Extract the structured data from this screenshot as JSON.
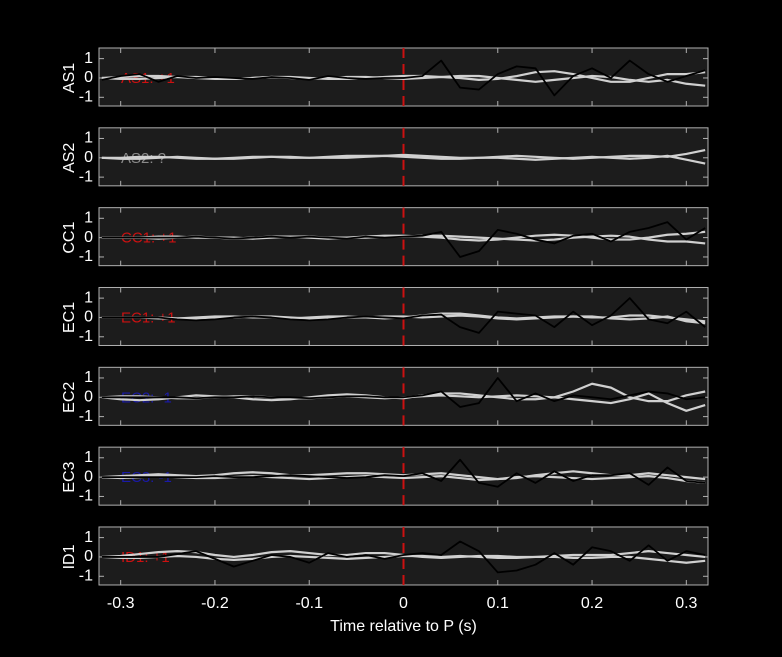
{
  "chart_data": [
    {
      "type": "line",
      "ylabel": "AS1",
      "annotation": "AS1: +1",
      "annotation_color": "#cc1111",
      "vline": 0,
      "vline_color": "#cc1111",
      "x": [
        -0.32,
        -0.3,
        -0.28,
        -0.26,
        -0.24,
        -0.22,
        -0.2,
        -0.18,
        -0.16,
        -0.14,
        -0.12,
        -0.1,
        -0.08,
        -0.06,
        -0.04,
        -0.02,
        0,
        0.02,
        0.04,
        0.06,
        0.08,
        0.1,
        0.12,
        0.14,
        0.16,
        0.18,
        0.2,
        0.22,
        0.24,
        0.26,
        0.28,
        0.3,
        0.32
      ],
      "xlim": [
        -0.323,
        0.323
      ],
      "ylim": [
        -1.45,
        1.55
      ],
      "xticks": [
        -0.3,
        -0.2,
        -0.1,
        0,
        0.1,
        0.2,
        0.3
      ],
      "yticks": [
        -1,
        0,
        1
      ],
      "series": [
        {
          "color": "#d0d0d0",
          "values": [
            0,
            0.05,
            0.1,
            0.1,
            0.05,
            0,
            -0.05,
            -0.05,
            0,
            0.05,
            0.05,
            0,
            -0.05,
            -0.05,
            0,
            0.05,
            0.1,
            0.1,
            0.05,
            0,
            -0.1,
            -0.05,
            0.1,
            0.3,
            0.35,
            0.2,
            0,
            -0.2,
            -0.2,
            0,
            0.2,
            0.2,
            0.3
          ]
        },
        {
          "color": "#d0d0d0",
          "values": [
            0,
            -0.05,
            -0.05,
            0,
            0.05,
            0.05,
            0,
            -0.05,
            0,
            0.05,
            0,
            -0.05,
            0,
            0.05,
            0.05,
            0,
            -0.05,
            0,
            0.05,
            0.1,
            0.1,
            0,
            -0.1,
            -0.2,
            -0.1,
            0,
            0.1,
            0.05,
            -0.1,
            -0.2,
            -0.1,
            -0.3,
            -0.4
          ]
        },
        {
          "color": "#000000",
          "values": [
            -0.1,
            0.1,
            0.2,
            -0.2,
            0.1,
            0,
            0.05,
            0,
            -0.05,
            0.05,
            0,
            -0.1,
            0.1,
            0,
            -0.05,
            0,
            0,
            0.1,
            0.9,
            -0.5,
            -0.6,
            0.2,
            0.6,
            0.5,
            -0.9,
            0.1,
            0.5,
            0,
            0.9,
            0.2,
            -0.2,
            0.1,
            0.4
          ]
        }
      ]
    },
    {
      "type": "line",
      "ylabel": "AS2",
      "annotation": "AS2: ?",
      "annotation_color": "#8a8a8a",
      "vline": 0,
      "vline_color": "#cc1111",
      "x": [
        -0.32,
        -0.3,
        -0.28,
        -0.26,
        -0.24,
        -0.22,
        -0.2,
        -0.18,
        -0.16,
        -0.14,
        -0.12,
        -0.1,
        -0.08,
        -0.06,
        -0.04,
        -0.02,
        0,
        0.02,
        0.04,
        0.06,
        0.08,
        0.1,
        0.12,
        0.14,
        0.16,
        0.18,
        0.2,
        0.22,
        0.24,
        0.26,
        0.28,
        0.3,
        0.32
      ],
      "xlim": [
        -0.323,
        0.323
      ],
      "ylim": [
        -1.45,
        1.55
      ],
      "xticks": [
        -0.3,
        -0.2,
        -0.1,
        0,
        0.1,
        0.2,
        0.3
      ],
      "yticks": [
        -1,
        0,
        1
      ],
      "series": [
        {
          "color": "#d0d0d0",
          "values": [
            0,
            0,
            0.05,
            0.05,
            0,
            -0.05,
            -0.05,
            0,
            0.05,
            0.05,
            0,
            0,
            0.05,
            0.1,
            0.1,
            0.1,
            0.15,
            0.1,
            0.05,
            0,
            0,
            0.05,
            0.1,
            0.05,
            0,
            -0.05,
            0,
            0.05,
            0.1,
            0.1,
            0.05,
            0.2,
            0.4
          ]
        },
        {
          "color": "#d0d0d0",
          "values": [
            0,
            -0.05,
            -0.05,
            0,
            0.05,
            0,
            -0.05,
            -0.05,
            0,
            0.05,
            0.05,
            0,
            0,
            0,
            0.05,
            0.1,
            0.05,
            0,
            -0.05,
            -0.05,
            0,
            0,
            -0.05,
            -0.1,
            -0.05,
            0,
            0.05,
            0,
            -0.05,
            0,
            0.1,
            -0.1,
            -0.3
          ]
        }
      ]
    },
    {
      "type": "line",
      "ylabel": "CC1",
      "annotation": "CC1: +1",
      "annotation_color": "#cc1111",
      "vline": 0,
      "vline_color": "#cc1111",
      "x": [
        -0.32,
        -0.3,
        -0.28,
        -0.26,
        -0.24,
        -0.22,
        -0.2,
        -0.18,
        -0.16,
        -0.14,
        -0.12,
        -0.1,
        -0.08,
        -0.06,
        -0.04,
        -0.02,
        0,
        0.02,
        0.04,
        0.06,
        0.08,
        0.1,
        0.12,
        0.14,
        0.16,
        0.18,
        0.2,
        0.22,
        0.24,
        0.26,
        0.28,
        0.3,
        0.32
      ],
      "xlim": [
        -0.323,
        0.323
      ],
      "ylim": [
        -1.45,
        1.55
      ],
      "xticks": [
        -0.3,
        -0.2,
        -0.1,
        0,
        0.1,
        0.2,
        0.3
      ],
      "yticks": [
        -1,
        0,
        1
      ],
      "series": [
        {
          "color": "#d0d0d0",
          "values": [
            0,
            0,
            0,
            0.05,
            0.05,
            0,
            0,
            -0.05,
            0,
            0.05,
            0.05,
            0,
            -0.05,
            0,
            0.05,
            0.1,
            0.1,
            0.05,
            0,
            -0.1,
            -0.15,
            -0.1,
            0,
            0.1,
            0.15,
            0.1,
            0,
            -0.1,
            -0.1,
            0,
            0.15,
            0.2,
            0.3
          ]
        },
        {
          "color": "#d0d0d0",
          "values": [
            0,
            0,
            0,
            -0.05,
            0,
            0.05,
            0,
            0,
            -0.05,
            0,
            0.05,
            0.05,
            0,
            0,
            0,
            0.05,
            0.05,
            0.1,
            0.1,
            0.05,
            0,
            -0.05,
            -0.1,
            -0.15,
            -0.1,
            0,
            0.05,
            0.1,
            0.05,
            -0.1,
            -0.2,
            -0.2,
            -0.3
          ]
        },
        {
          "color": "#000000",
          "values": [
            0,
            0,
            0,
            0,
            0,
            0.05,
            0,
            -0.05,
            0,
            0.05,
            0,
            0.05,
            0,
            -0.05,
            0.05,
            0,
            0.05,
            0.1,
            0.3,
            -1.0,
            -0.7,
            0.4,
            0.2,
            -0.1,
            -0.3,
            0.1,
            0.2,
            -0.2,
            0.3,
            0.5,
            0.8,
            -0.1,
            0.5
          ]
        }
      ]
    },
    {
      "type": "line",
      "ylabel": "EC1",
      "annotation": "EC1: +1",
      "annotation_color": "#cc1111",
      "vline": 0,
      "vline_color": "#cc1111",
      "x": [
        -0.32,
        -0.3,
        -0.28,
        -0.26,
        -0.24,
        -0.22,
        -0.2,
        -0.18,
        -0.16,
        -0.14,
        -0.12,
        -0.1,
        -0.08,
        -0.06,
        -0.04,
        -0.02,
        0,
        0.02,
        0.04,
        0.06,
        0.08,
        0.1,
        0.12,
        0.14,
        0.16,
        0.18,
        0.2,
        0.22,
        0.24,
        0.26,
        0.28,
        0.3,
        0.32
      ],
      "xlim": [
        -0.323,
        0.323
      ],
      "ylim": [
        -1.45,
        1.55
      ],
      "xticks": [
        -0.3,
        -0.2,
        -0.1,
        0,
        0.1,
        0.2,
        0.3
      ],
      "yticks": [
        -1,
        0,
        1
      ],
      "series": [
        {
          "color": "#d0d0d0",
          "values": [
            0,
            0,
            0,
            -0.05,
            -0.05,
            0,
            0.05,
            0.05,
            0,
            0,
            -0.05,
            0,
            0.05,
            0.05,
            0,
            -0.05,
            0,
            0.1,
            0.2,
            0.2,
            0.1,
            0,
            -0.05,
            0,
            0.05,
            0.05,
            0,
            0,
            0.1,
            0.1,
            0,
            -0.1,
            -0.2
          ]
        },
        {
          "color": "#d0d0d0",
          "values": [
            0,
            0,
            0,
            0,
            -0.05,
            -0.05,
            0,
            0,
            0.05,
            0.05,
            0,
            -0.05,
            -0.05,
            0,
            0,
            0.05,
            0.05,
            0,
            0.05,
            0.1,
            0.05,
            -0.05,
            -0.1,
            -0.05,
            0,
            0.05,
            0.05,
            -0.05,
            -0.1,
            -0.05,
            0.05,
            -0.2,
            -0.3
          ]
        },
        {
          "color": "#000000",
          "values": [
            0,
            0,
            0,
            0,
            -0.1,
            -0.15,
            -0.1,
            0,
            0.05,
            0,
            -0.1,
            -0.15,
            -0.1,
            0,
            0.05,
            0,
            -0.05,
            0.1,
            0.15,
            -0.5,
            -0.8,
            0.3,
            0.2,
            0.1,
            -0.5,
            0.3,
            -0.4,
            0.1,
            1.0,
            -0.1,
            -0.3,
            0.3,
            -0.5
          ]
        }
      ]
    },
    {
      "type": "line",
      "ylabel": "EC2",
      "annotation": "EC2: -1",
      "annotation_color": "#1a1aa8",
      "vline": 0,
      "vline_color": "#cc1111",
      "x": [
        -0.32,
        -0.3,
        -0.28,
        -0.26,
        -0.24,
        -0.22,
        -0.2,
        -0.18,
        -0.16,
        -0.14,
        -0.12,
        -0.1,
        -0.08,
        -0.06,
        -0.04,
        -0.02,
        0,
        0.02,
        0.04,
        0.06,
        0.08,
        0.1,
        0.12,
        0.14,
        0.16,
        0.18,
        0.2,
        0.22,
        0.24,
        0.26,
        0.28,
        0.3,
        0.32
      ],
      "xlim": [
        -0.323,
        0.323
      ],
      "ylim": [
        -1.45,
        1.55
      ],
      "xticks": [
        -0.3,
        -0.2,
        -0.1,
        0,
        0.1,
        0.2,
        0.3
      ],
      "yticks": [
        -1,
        0,
        1
      ],
      "series": [
        {
          "color": "#d0d0d0",
          "values": [
            0,
            -0.1,
            -0.15,
            -0.1,
            0,
            0.1,
            0.05,
            0,
            -0.1,
            -0.15,
            -0.1,
            0,
            0.1,
            0.15,
            0.1,
            0,
            -0.05,
            0.1,
            0.2,
            0.2,
            0.1,
            0,
            -0.1,
            -0.1,
            0,
            0.3,
            0.7,
            0.5,
            0,
            -0.2,
            -0.2,
            0.1,
            0.3
          ]
        },
        {
          "color": "#d0d0d0",
          "values": [
            0,
            0.05,
            0.05,
            0,
            -0.05,
            -0.05,
            0,
            0.05,
            0.05,
            0,
            -0.05,
            -0.05,
            0,
            0.05,
            0,
            -0.05,
            0,
            0.05,
            0.1,
            0.05,
            0,
            0.05,
            0.1,
            0.05,
            0,
            -0.1,
            -0.2,
            -0.3,
            -0.1,
            0.2,
            -0.3,
            -0.7,
            -0.4
          ]
        },
        {
          "color": "#000000",
          "values": [
            0,
            0,
            0,
            0,
            0,
            -0.05,
            0,
            0,
            0.05,
            0,
            0,
            -0.05,
            0,
            0.05,
            0.05,
            0,
            0,
            0.1,
            0.3,
            -0.5,
            -0.3,
            1.0,
            -0.2,
            0.2,
            -0.2,
            0.1,
            0,
            -0.1,
            0.1,
            0.3,
            0.2,
            -0.1,
            0
          ]
        }
      ]
    },
    {
      "type": "line",
      "ylabel": "EC3",
      "annotation": "EC3: -1",
      "annotation_color": "#1a1aa8",
      "vline": 0,
      "vline_color": "#cc1111",
      "x": [
        -0.32,
        -0.3,
        -0.28,
        -0.26,
        -0.24,
        -0.22,
        -0.2,
        -0.18,
        -0.16,
        -0.14,
        -0.12,
        -0.1,
        -0.08,
        -0.06,
        -0.04,
        -0.02,
        0,
        0.02,
        0.04,
        0.06,
        0.08,
        0.1,
        0.12,
        0.14,
        0.16,
        0.18,
        0.2,
        0.22,
        0.24,
        0.26,
        0.28,
        0.3,
        0.32
      ],
      "xlim": [
        -0.323,
        0.323
      ],
      "ylim": [
        -1.45,
        1.55
      ],
      "xticks": [
        -0.3,
        -0.2,
        -0.1,
        0,
        0.1,
        0.2,
        0.3
      ],
      "yticks": [
        -1,
        0,
        1
      ],
      "series": [
        {
          "color": "#d0d0d0",
          "values": [
            0,
            0.05,
            0.1,
            0.15,
            0.1,
            0.05,
            0.1,
            0.2,
            0.25,
            0.2,
            0.1,
            0.1,
            0.15,
            0.2,
            0.2,
            0.15,
            0.1,
            0.15,
            0.2,
            0.1,
            0,
            -0.1,
            -0.05,
            0.1,
            0.2,
            0.3,
            0.2,
            0.1,
            0.1,
            0.2,
            0.1,
            0,
            -0.1
          ]
        },
        {
          "color": "#d0d0d0",
          "values": [
            0,
            -0.05,
            0,
            0.05,
            0,
            -0.05,
            -0.05,
            0,
            0.05,
            0,
            -0.05,
            -0.1,
            -0.05,
            0,
            0.05,
            0,
            -0.05,
            0,
            0.05,
            -0.05,
            -0.15,
            -0.1,
            0,
            0.05,
            0,
            -0.05,
            -0.1,
            -0.05,
            0,
            0.05,
            -0.05,
            -0.2,
            -0.3
          ]
        },
        {
          "color": "#000000",
          "values": [
            0,
            0,
            0,
            0,
            0,
            0,
            0.05,
            0,
            0,
            0.05,
            0.1,
            0.05,
            0,
            -0.05,
            0,
            0.1,
            0.05,
            0.2,
            -0.2,
            0.9,
            -0.3,
            -0.5,
            0.2,
            -0.3,
            0.3,
            -0.2,
            0.1,
            0.1,
            0.2,
            -0.4,
            0.5,
            -0.2,
            -0.3
          ]
        }
      ]
    },
    {
      "type": "line",
      "ylabel": "ID1",
      "annotation": "ID1: +1",
      "annotation_color": "#cc1111",
      "vline": 0,
      "vline_color": "#cc1111",
      "xlabel": "Time relative to P (s)",
      "x": [
        -0.32,
        -0.3,
        -0.28,
        -0.26,
        -0.24,
        -0.22,
        -0.2,
        -0.18,
        -0.16,
        -0.14,
        -0.12,
        -0.1,
        -0.08,
        -0.06,
        -0.04,
        -0.02,
        0,
        0.02,
        0.04,
        0.06,
        0.08,
        0.1,
        0.12,
        0.14,
        0.16,
        0.18,
        0.2,
        0.22,
        0.24,
        0.26,
        0.28,
        0.3,
        0.32
      ],
      "xlim": [
        -0.323,
        0.323
      ],
      "ylim": [
        -1.45,
        1.55
      ],
      "xticks": [
        -0.3,
        -0.2,
        -0.1,
        0,
        0.1,
        0.2,
        0.3
      ],
      "yticks": [
        -1,
        0,
        1
      ],
      "series": [
        {
          "color": "#d0d0d0",
          "values": [
            0,
            0.05,
            0.15,
            0.25,
            0.3,
            0.25,
            0.1,
            0,
            0.1,
            0.25,
            0.3,
            0.2,
            0.1,
            0.1,
            0.2,
            0.2,
            0.1,
            0,
            -0.05,
            0,
            0.05,
            0.05,
            0,
            0,
            0.05,
            0.1,
            0.1,
            0.1,
            0.2,
            0.3,
            0.2,
            0.1,
            0
          ]
        },
        {
          "color": "#d0d0d0",
          "values": [
            0,
            -0.05,
            -0.05,
            0,
            0.05,
            0,
            -0.1,
            -0.15,
            -0.1,
            0,
            0.05,
            0,
            -0.05,
            -0.1,
            -0.05,
            0,
            0.05,
            0.05,
            0,
            0.05,
            0,
            -0.05,
            -0.05,
            0,
            0,
            -0.05,
            -0.05,
            0,
            0,
            -0.1,
            -0.2,
            -0.3,
            -0.2
          ]
        },
        {
          "color": "#000000",
          "values": [
            0,
            0,
            0,
            0,
            0.15,
            0.3,
            -0.1,
            -0.5,
            -0.2,
            0.1,
            0,
            -0.3,
            0.2,
            0,
            0.1,
            -0.1,
            0.1,
            0.2,
            0.1,
            0.8,
            0.3,
            -0.8,
            -0.7,
            -0.4,
            0.2,
            -0.4,
            0.5,
            0.3,
            -0.2,
            0.6,
            -0.2,
            0.3,
            0.1
          ]
        }
      ]
    }
  ]
}
